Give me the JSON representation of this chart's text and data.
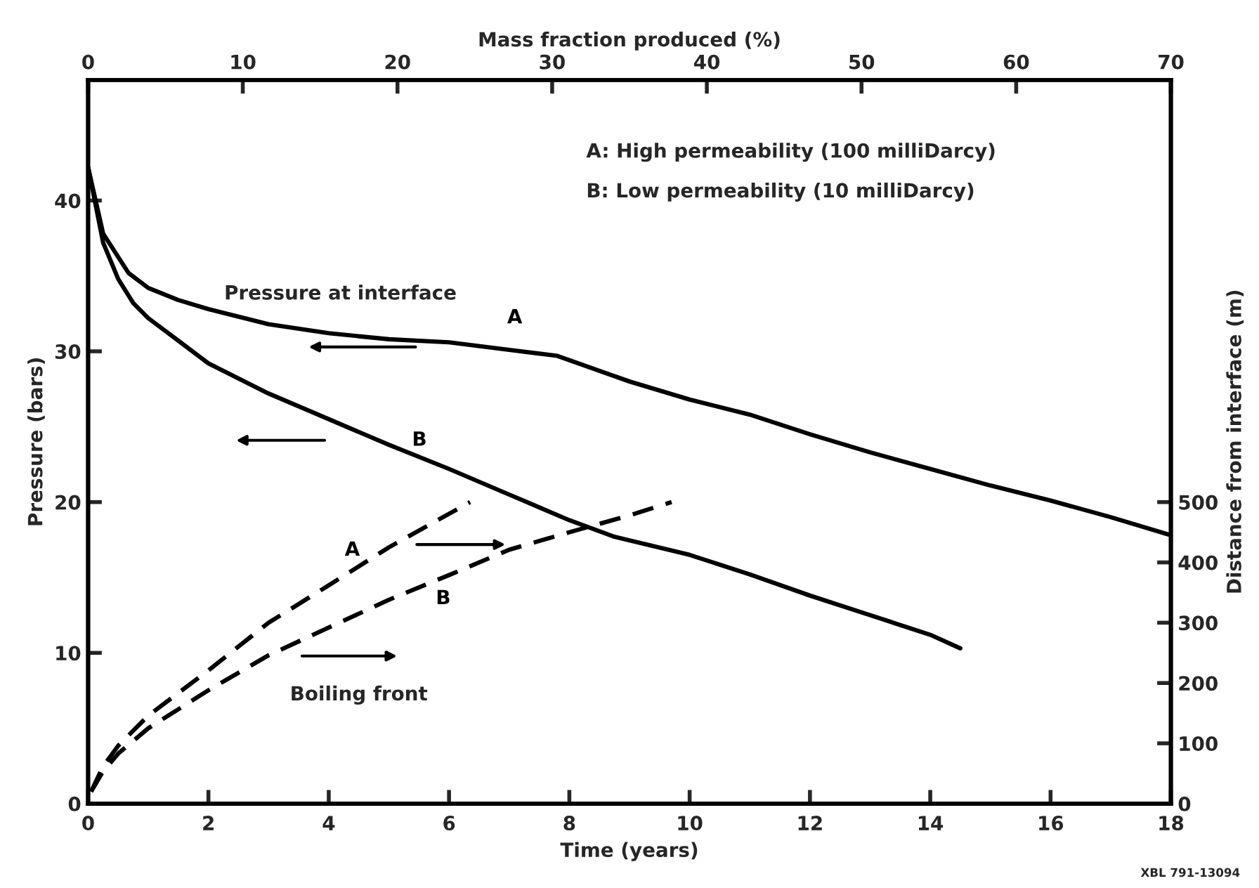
{
  "chart_data": {
    "type": "line",
    "xlabel": "Time (years)",
    "ylabel": "Pressure (bars)",
    "y2label": "Distance from interface (m)",
    "x2label": "Mass fraction produced (%)",
    "xlim": [
      0,
      18
    ],
    "xticks": [
      0,
      2,
      4,
      6,
      8,
      10,
      12,
      14,
      16,
      18
    ],
    "ylim": [
      0,
      48
    ],
    "yticks": [
      0,
      10,
      20,
      30,
      40
    ],
    "y2lim": [
      0,
      1200
    ],
    "y2ticks": [
      0,
      100,
      200,
      300,
      400,
      500
    ],
    "x2lim": [
      0,
      70
    ],
    "x2ticks": [
      0,
      10,
      20,
      30,
      40,
      50,
      60,
      70
    ],
    "grid": false,
    "legend": false,
    "marker": "none",
    "series": [
      {
        "name": "A",
        "color": "#000000",
        "line_style": "solid",
        "x": [
          0,
          0.25,
          0.67,
          1,
          1.5,
          2,
          3,
          4,
          5,
          6,
          7,
          7.8,
          8.5,
          9,
          10,
          11,
          12,
          13,
          14,
          15,
          16,
          17,
          18
        ],
        "values": [
          42.2,
          37.8,
          35.2,
          34.2,
          33.4,
          32.8,
          31.8,
          31.2,
          30.8,
          30.6,
          30.1,
          29.7,
          28.7,
          28.0,
          26.8,
          25.8,
          24.5,
          23.3,
          22.2,
          21.1,
          20.1,
          19.0,
          17.8
        ]
      },
      {
        "name": "B",
        "color": "#000000",
        "line_style": "solid",
        "x": [
          0,
          0.25,
          0.5,
          0.75,
          1,
          1.5,
          2,
          3,
          4,
          5,
          6,
          7,
          8,
          8.75,
          10,
          11,
          12,
          13,
          14,
          14.5
        ],
        "values": [
          42.2,
          37.2,
          34.8,
          33.2,
          32.2,
          30.7,
          29.2,
          27.2,
          25.5,
          23.8,
          22.2,
          20.5,
          18.8,
          17.7,
          16.5,
          15.2,
          13.8,
          12.5,
          11.2,
          10.3
        ]
      },
      {
        "name": "A",
        "color": "#000000",
        "line_style": "dashed",
        "axis": "y2",
        "x": [
          0.05,
          0.25,
          0.5,
          1,
          2,
          3,
          4,
          5,
          6.35
        ],
        "values": [
          20,
          62,
          96,
          146,
          221,
          300,
          362,
          425,
          500
        ]
      },
      {
        "name": "B",
        "color": "#000000",
        "line_style": "dashed",
        "axis": "y2",
        "x": [
          0.05,
          0.25,
          0.5,
          1,
          2,
          3,
          4,
          5,
          6,
          7,
          8,
          9,
          9.7
        ],
        "values": [
          20,
          54,
          83,
          125,
          188,
          246,
          292,
          338,
          379,
          421,
          450,
          478,
          500
        ]
      }
    ],
    "annotations": [
      "Pressure at interface",
      "Boiling front",
      "A: High permeability (100 milliDarcy)",
      "B: Low permeability (10 milliDarcy)",
      "XBL 791-13094"
    ]
  }
}
